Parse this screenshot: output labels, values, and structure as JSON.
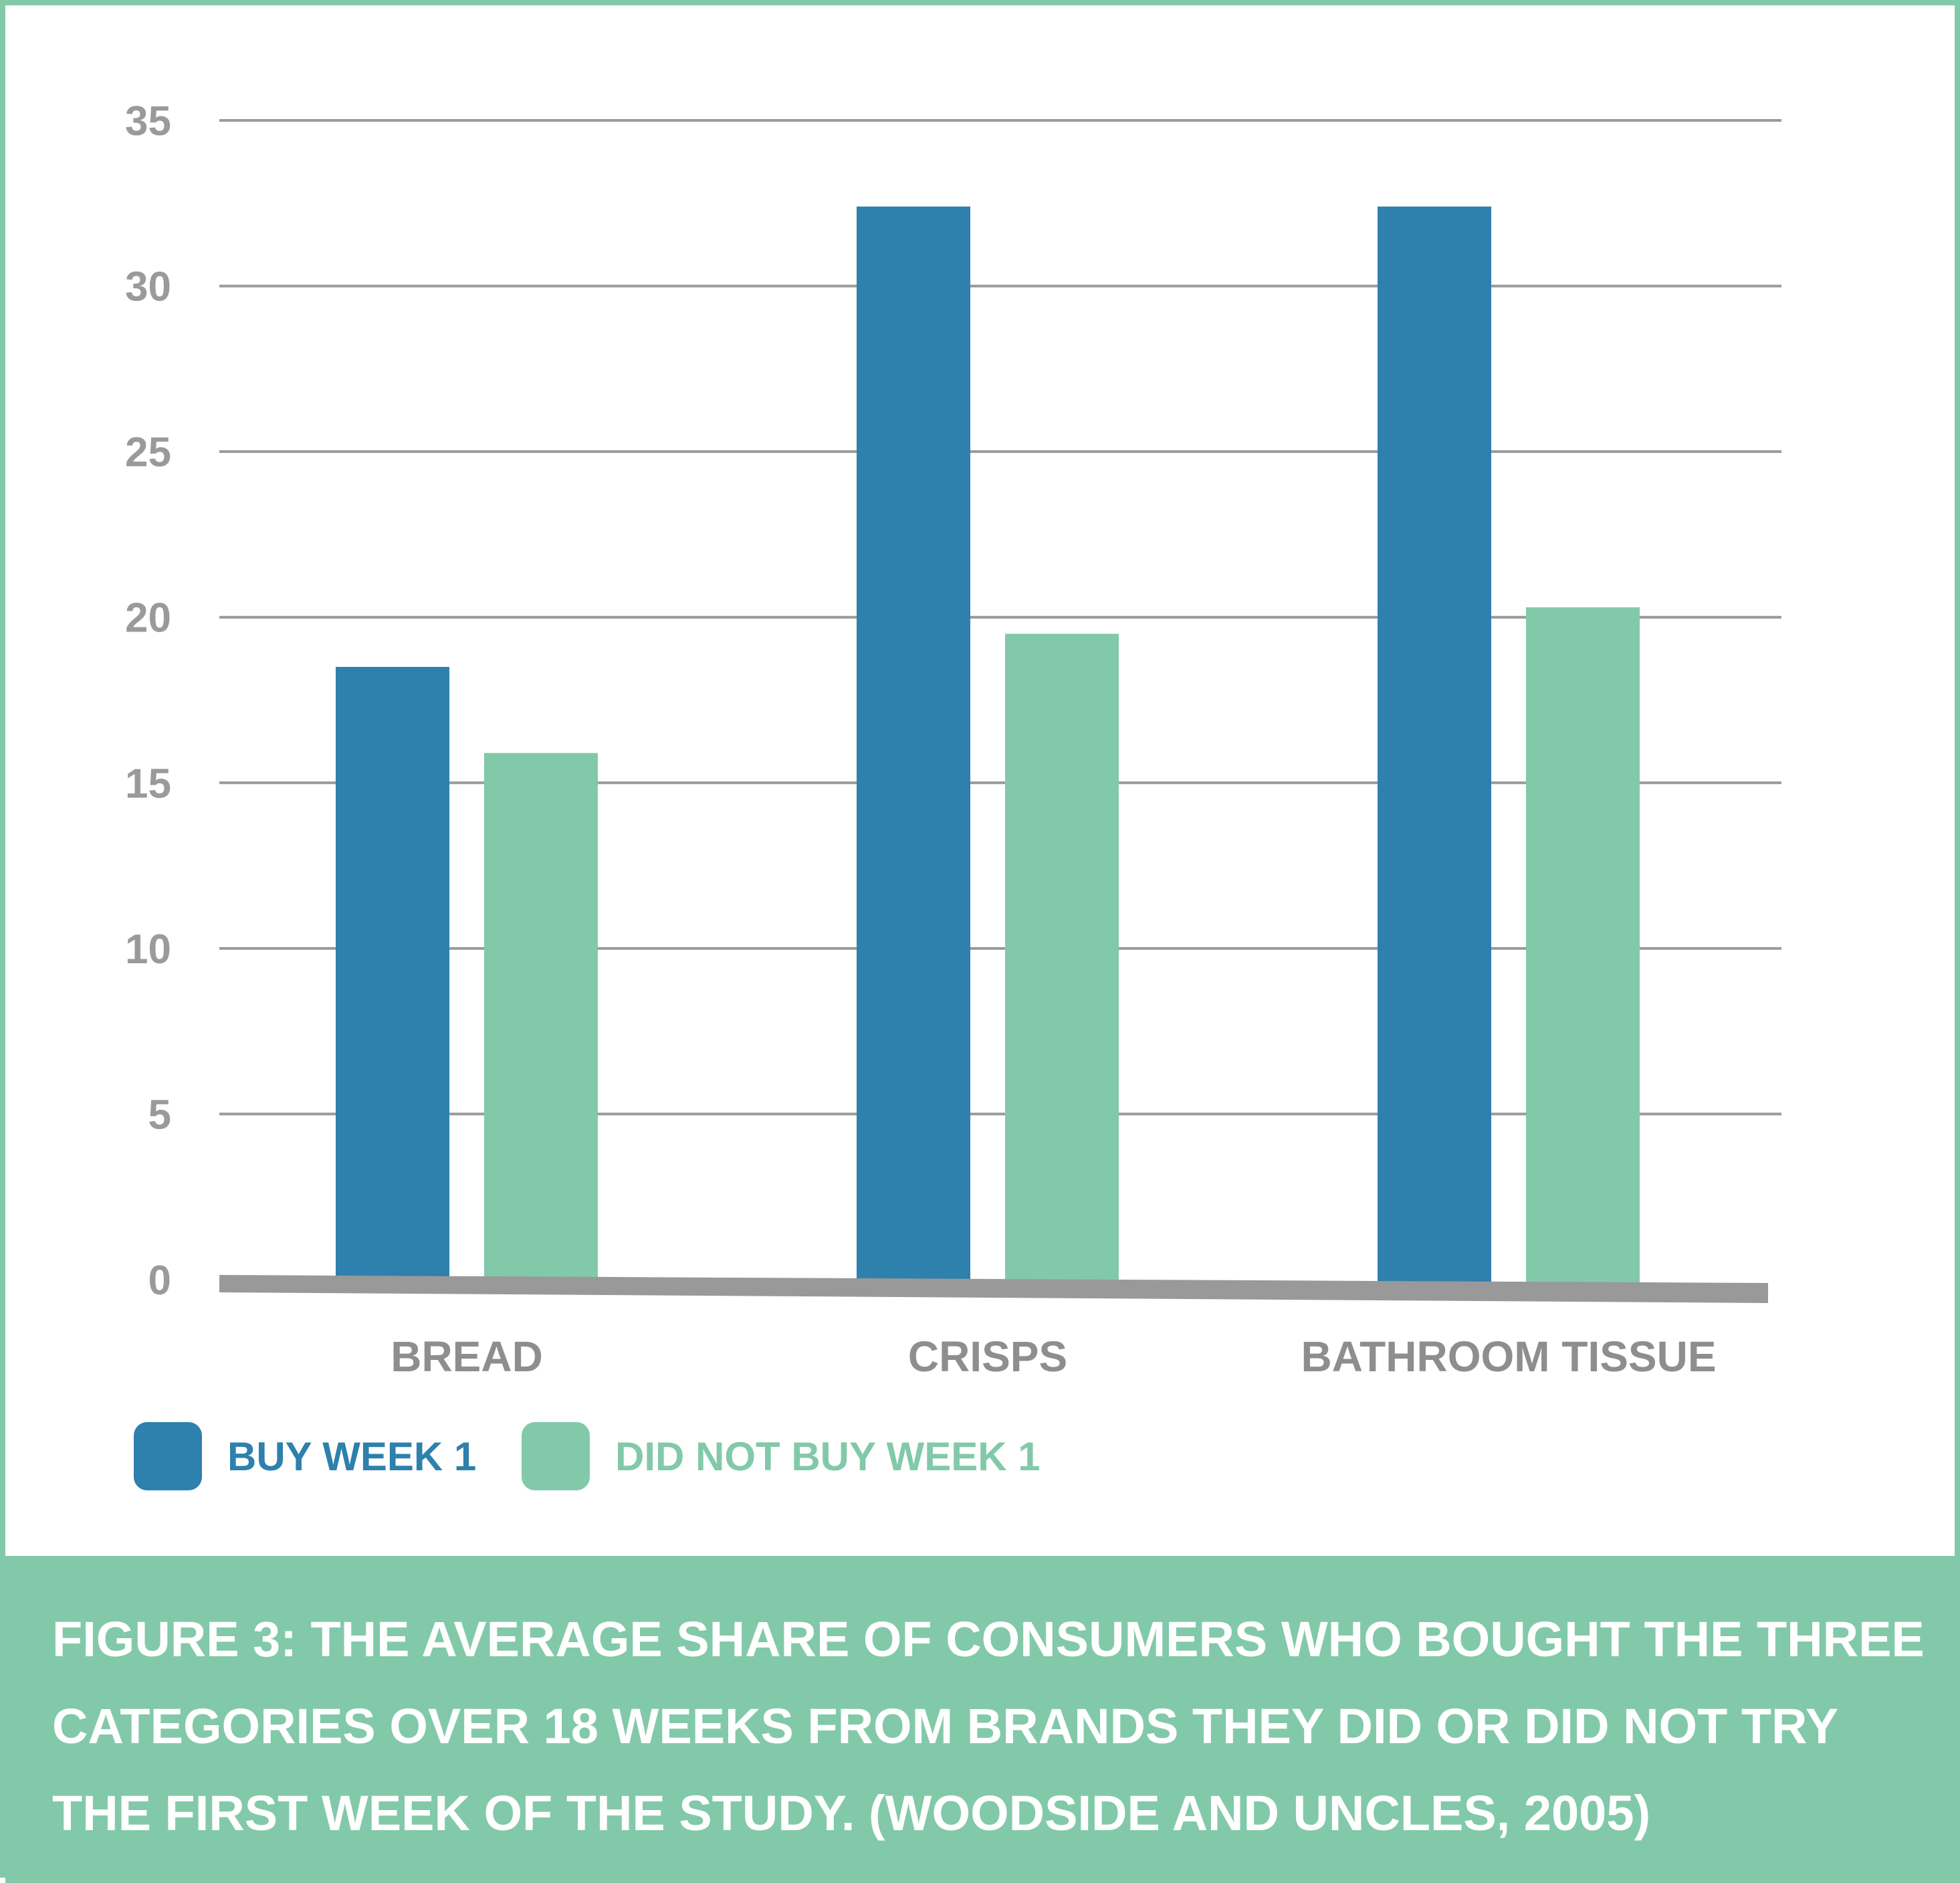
{
  "chart_data": {
    "type": "bar",
    "title": "",
    "xlabel": "",
    "ylabel": "",
    "ylim": [
      0,
      35
    ],
    "yticks": [
      0,
      5,
      10,
      15,
      20,
      25,
      30,
      35
    ],
    "grid": true,
    "legend_position": "bottom-left",
    "categories": [
      "BREAD",
      "CRISPS",
      "BATHROOM TISSUE"
    ],
    "series": [
      {
        "name": "BUY WEEK 1",
        "color": "#2e80ad",
        "values": [
          18.5,
          32.4,
          32.4
        ]
      },
      {
        "name": "DID NOT BUY WEEK 1",
        "color": "#82c9a9",
        "values": [
          15.9,
          19.5,
          20.3
        ]
      }
    ]
  },
  "caption": "FIGURE 3: THE AVERAGE SHARE OF CONSUMERS WHO BOUGHT THE THREE CATEGORIES OVER 18 WEEKS FROM BRANDS THEY DID OR DID NOT TRY THE FIRST WEEK OF THE STUDY. (WOODSIDE AND UNCLES, 2005)",
  "colors": {
    "frame": "#82c9a9",
    "grid": "#9a9a9a",
    "baseline": "#999999"
  }
}
